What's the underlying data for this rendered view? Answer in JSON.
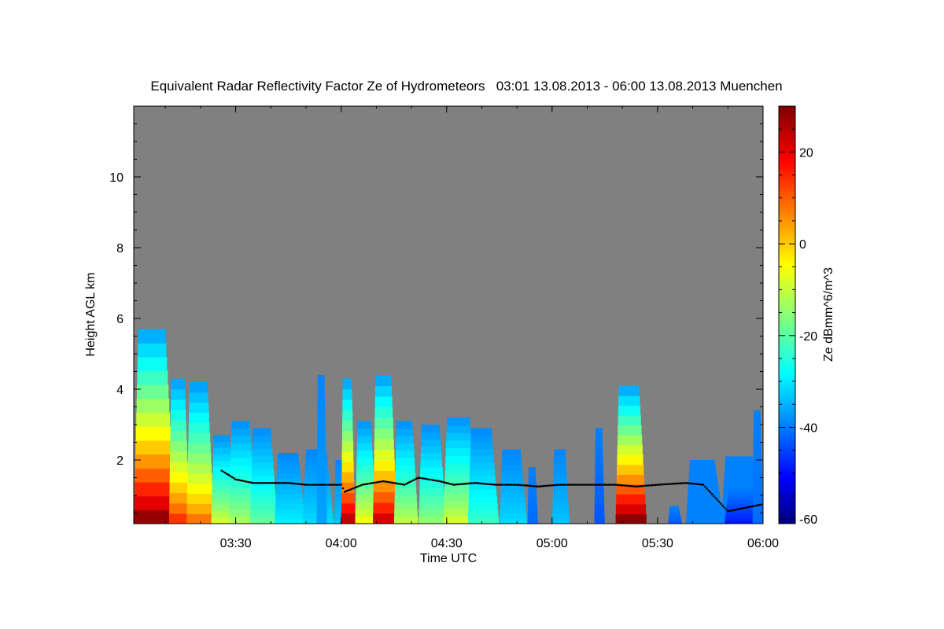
{
  "chart_data": {
    "type": "heatmap",
    "title": "Equivalent Radar Reflectivity Factor Ze of Hydrometeors   03:01 13.08.2013 - 06:00 13.08.2013 Muenchen",
    "xlabel": "Time UTC",
    "ylabel": "Height AGL km",
    "xlim": [
      181,
      360
    ],
    "ylim": [
      0.2,
      12.0
    ],
    "x_ticks": [
      {
        "value": 210,
        "label": "03:30"
      },
      {
        "value": 240,
        "label": "04:00"
      },
      {
        "value": 270,
        "label": "04:30"
      },
      {
        "value": 300,
        "label": "05:00"
      },
      {
        "value": 330,
        "label": "05:30"
      },
      {
        "value": 360,
        "label": "06:00"
      }
    ],
    "y_ticks": [
      {
        "value": 2,
        "label": "2"
      },
      {
        "value": 4,
        "label": "4"
      },
      {
        "value": 6,
        "label": "6"
      },
      {
        "value": 8,
        "label": "8"
      },
      {
        "value": 10,
        "label": "10"
      }
    ],
    "colorbar": {
      "label": "Ze dBmm^6/m^3",
      "range": [
        -61,
        30
      ],
      "ticks": [
        {
          "value": 20,
          "label": "20"
        },
        {
          "value": 0,
          "label": "0"
        },
        {
          "value": -20,
          "label": "-20"
        },
        {
          "value": -40,
          "label": "-40"
        },
        {
          "value": -60,
          "label": "-60"
        }
      ]
    },
    "background_color": "#808080",
    "echo_cells": [
      {
        "t0": 181,
        "t1": 193,
        "top": 5.7,
        "peak": 28
      },
      {
        "t0": 191,
        "t1": 197,
        "top": 4.3,
        "peak": 14
      },
      {
        "t0": 196,
        "t1": 204,
        "top": 4.2,
        "peak": 8
      },
      {
        "t0": 203,
        "t1": 210,
        "top": 2.7,
        "peak": -8
      },
      {
        "t0": 208,
        "t1": 216,
        "top": 3.1,
        "peak": -12
      },
      {
        "t0": 214,
        "t1": 222,
        "top": 2.9,
        "peak": -18
      },
      {
        "t0": 221,
        "t1": 230,
        "top": 2.2,
        "peak": -28
      },
      {
        "t0": 229,
        "t1": 238,
        "top": 2.3,
        "peak": -30
      },
      {
        "t0": 233,
        "t1": 236,
        "top": 4.4,
        "peak": -35
      },
      {
        "t0": 238,
        "t1": 242,
        "top": 2.0,
        "peak": -32
      },
      {
        "t0": 240,
        "t1": 244,
        "top": 4.3,
        "peak": 24
      },
      {
        "t0": 244,
        "t1": 250,
        "top": 3.1,
        "peak": -5
      },
      {
        "t0": 249,
        "t1": 256,
        "top": 4.4,
        "peak": 22
      },
      {
        "t0": 255,
        "t1": 262,
        "top": 3.1,
        "peak": -10
      },
      {
        "t0": 262,
        "t1": 270,
        "top": 3.0,
        "peak": -14
      },
      {
        "t0": 269,
        "t1": 279,
        "top": 3.2,
        "peak": -8
      },
      {
        "t0": 276,
        "t1": 285,
        "top": 2.9,
        "peak": -22
      },
      {
        "t0": 285,
        "t1": 293,
        "top": 2.3,
        "peak": -30
      },
      {
        "t0": 293,
        "t1": 296,
        "top": 1.8,
        "peak": -40
      },
      {
        "t0": 300,
        "t1": 305,
        "top": 2.3,
        "peak": -32
      },
      {
        "t0": 312,
        "t1": 315,
        "top": 2.9,
        "peak": -42
      },
      {
        "t0": 318,
        "t1": 327,
        "top": 4.1,
        "peak": 29
      },
      {
        "t0": 333,
        "t1": 337,
        "top": 0.7,
        "peak": -42
      },
      {
        "t0": 338,
        "t1": 349,
        "top": 2.0,
        "peak": -38
      },
      {
        "t0": 348,
        "t1": 360,
        "top": 2.1,
        "peak": -38
      },
      {
        "t0": 349,
        "t1": 360,
        "top": 1.2,
        "peak": -48
      },
      {
        "t0": 357,
        "t1": 360,
        "top": 3.4,
        "peak": -40
      }
    ],
    "cloud_base": {
      "color": "#000000",
      "points": [
        [
          206,
          1.7
        ],
        [
          210,
          1.45
        ],
        [
          215,
          1.35
        ],
        [
          220,
          1.35
        ],
        [
          225,
          1.35
        ],
        [
          230,
          1.3
        ],
        [
          235,
          1.3
        ],
        [
          240,
          1.3
        ],
        [
          241,
          1.1
        ],
        [
          246,
          1.3
        ],
        [
          252,
          1.4
        ],
        [
          258,
          1.3
        ],
        [
          262,
          1.5
        ],
        [
          268,
          1.4
        ],
        [
          272,
          1.3
        ],
        [
          278,
          1.35
        ],
        [
          284,
          1.3
        ],
        [
          290,
          1.3
        ],
        [
          296,
          1.25
        ],
        [
          302,
          1.3
        ],
        [
          310,
          1.3
        ],
        [
          318,
          1.3
        ],
        [
          324,
          1.25
        ],
        [
          330,
          1.3
        ],
        [
          338,
          1.35
        ],
        [
          343,
          1.3
        ],
        [
          350,
          0.55
        ],
        [
          355,
          0.65
        ],
        [
          360,
          0.75
        ]
      ]
    }
  }
}
